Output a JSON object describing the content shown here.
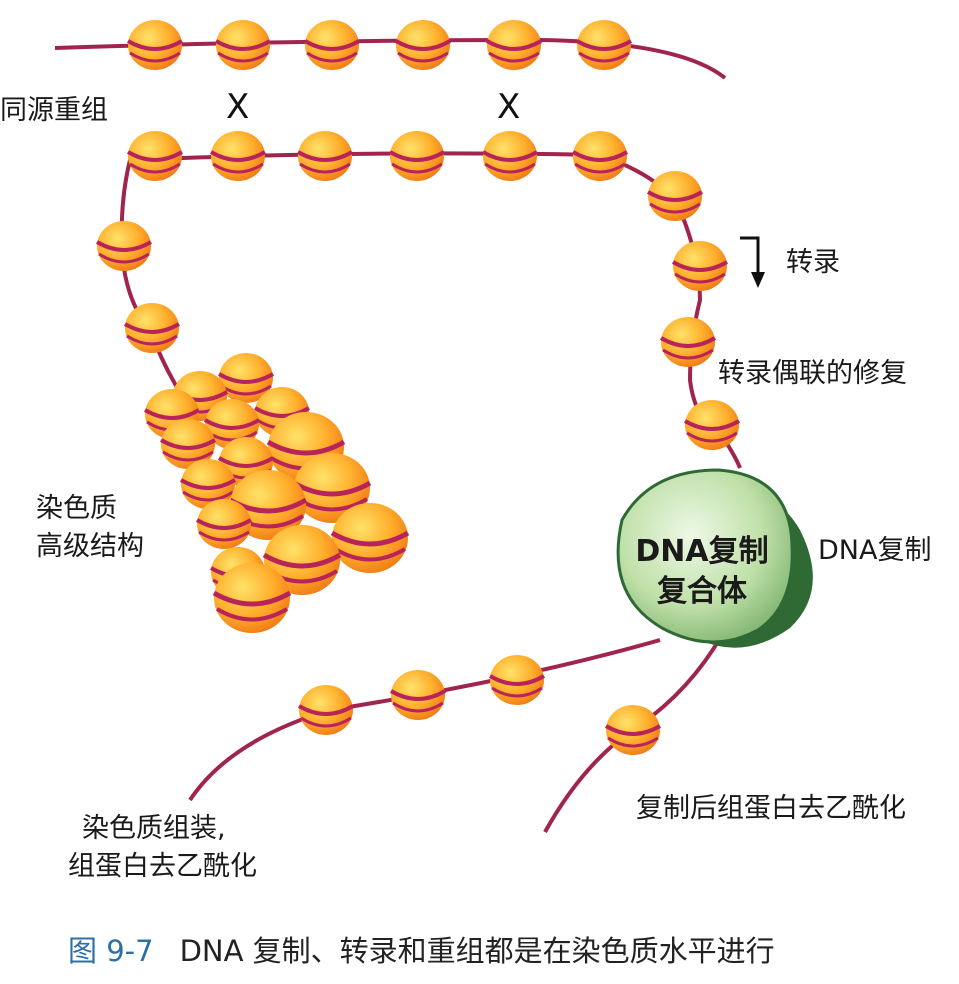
{
  "labels": {
    "homologous_recombination": "同源重组",
    "crossover_mark": "X",
    "transcription": "转录",
    "transcription_coupled_repair": "转录偶联的修复",
    "chromatin_higher_structure_line1": "染色质",
    "chromatin_higher_structure_line2": "高级结构",
    "replication_complex_line1": "DNA复制",
    "replication_complex_line2": "复合体",
    "dna_replication": "DNA复制",
    "chromatin_assembly_line1": "染色质组装,",
    "chromatin_assembly_line2": "组蛋白去乙酰化",
    "post_replication_deacetylation": "复制后组蛋白去乙酰化"
  },
  "caption": {
    "figure_number": "图 9-7",
    "text": "DNA 复制、转录和重组都是在染色质水平进行"
  },
  "colors": {
    "dna_strand": "#a0244f",
    "nucleosome_light": "#ffe36a",
    "nucleosome_dark": "#f07a14",
    "complex_light": "#c9e6b4",
    "complex_dark": "#2f6a35"
  }
}
